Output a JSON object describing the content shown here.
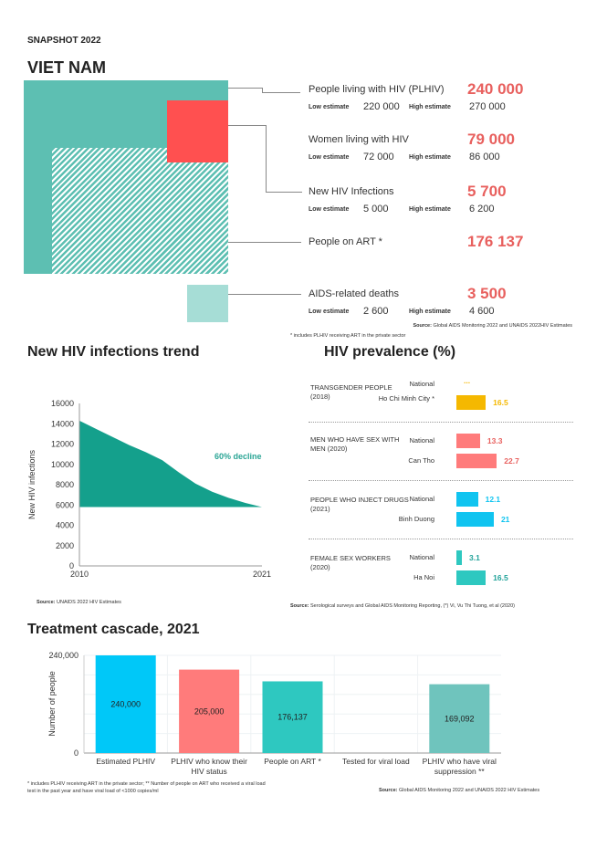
{
  "header": {
    "snapshot": "SNAPSHOT 2022",
    "country": "VIET NAM"
  },
  "colors": {
    "plhiv": "#5dbfb2",
    "women": "#ff5050",
    "art_hatch": "#5dbfb2",
    "deaths": "#a6ddd6",
    "number": "#e8605e"
  },
  "estimate_labels": {
    "low": "Low estimate",
    "high": "High estimate"
  },
  "stats": [
    {
      "label": "People living with HIV (PLHIV)",
      "value": "240 000",
      "low": "220 000",
      "high": "270 000"
    },
    {
      "label": "Women living with HIV",
      "value": "79 000",
      "low": "72 000",
      "high": "86 000"
    },
    {
      "label": "New HIV Infections",
      "value": "5 700",
      "low": "5 000",
      "high": "6 200"
    },
    {
      "label": "People on ART *",
      "value": "176 137"
    },
    {
      "label": "AIDS-related deaths",
      "value": "3 500",
      "low": "2 600",
      "high": "4 600"
    }
  ],
  "stats_source": {
    "prefix": "Source:",
    "text": " Global AIDS Monitoring 2022 and UNAIDS 2022HIV Estimates"
  },
  "stats_footnote": "* includes PLHIV receiving ART in the private sector",
  "trend": {
    "title": "New HIV infections trend",
    "source_prefix": "Source:",
    "source": " UNAIDS 2022 HIV Estimates"
  },
  "prevalence": {
    "title": "HIV prevalence (%)",
    "source_prefix": "Source:",
    "source": " Serological surveys and Global AIDS Monitoring Reporting,   (*) Vi, Vu Thi Tuong,  et al (2020)"
  },
  "cascade": {
    "title": "Treatment cascade, 2021",
    "footnote1": "* includes PLHIV receiving ART in the private sector; ** Number of people on ART who received a viral load",
    "footnote2": "test in the past year and have viral load of <1000 copies/ml",
    "source_prefix": "Source:",
    "source": " Global AIDS Monitoring 2022 and UNAIDS 2022 HIV Estimates"
  },
  "chart_data": [
    {
      "type": "area",
      "title": "New HIV infections trend",
      "xlabel": "",
      "ylabel": "New HIV infections",
      "x": [
        2010,
        2011,
        2012,
        2013,
        2014,
        2015,
        2016,
        2017,
        2018,
        2019,
        2020,
        2021
      ],
      "values": [
        14300,
        13500,
        12700,
        11900,
        11200,
        10400,
        9200,
        8100,
        7300,
        6700,
        6200,
        5800
      ],
      "baseline": 5800,
      "ylim": [
        0,
        16000
      ],
      "yticks": [
        "0",
        "2000",
        "4000",
        "6000",
        "8000",
        "10000",
        "12000",
        "14000",
        "16000"
      ],
      "xticks": [
        "2010",
        "2021"
      ],
      "annotation": "60% decline",
      "color": "#14a08c",
      "grid": false
    },
    {
      "type": "bar",
      "orientation": "horizontal",
      "title": "HIV prevalence (%)",
      "groups": [
        {
          "name": "TRANSGENDER PEOPLE (2018)",
          "color": "#f5b800",
          "items": [
            {
              "label": "National",
              "value": null,
              "text": "..."
            },
            {
              "label": "Ho Chi Minh City *",
              "value": 16.5,
              "text": "16.5"
            }
          ]
        },
        {
          "name": "MEN WHO HAVE SEX WITH  MEN (2020)",
          "color": "#ff7b7b",
          "items": [
            {
              "label": "National",
              "value": 13.3,
              "text": "13.3"
            },
            {
              "label": "Can Tho",
              "value": 22.7,
              "text": "22.7"
            }
          ]
        },
        {
          "name": "PEOPLE WHO INJECT DRUGS (2021)",
          "color": "#10c4f0",
          "items": [
            {
              "label": "National",
              "value": 12.1,
              "text": "12.1"
            },
            {
              "label": "Binh Duong",
              "value": 21,
              "text": "21"
            }
          ]
        },
        {
          "name": "FEMALE SEX WORKERS (2020)",
          "color": "#2ec8c0",
          "items": [
            {
              "label": "National",
              "value": 3.1,
              "text": "3.1"
            },
            {
              "label": "Ha Noi",
              "value": 16.5,
              "text": "16.5"
            }
          ]
        }
      ]
    },
    {
      "type": "bar",
      "title": "Treatment cascade, 2021",
      "ylabel": "Number of people",
      "ylim": [
        0,
        240000
      ],
      "yticks": [
        "0",
        "240,000"
      ],
      "grid": true,
      "categories": [
        "Estimated PLHIV",
        "PLHIV who know their HIV status",
        "People on ART *",
        "Tested for viral load",
        "PLHIV who have viral suppression **"
      ],
      "values": [
        240000,
        205000,
        176137,
        null,
        169092
      ],
      "labels": [
        "240,000",
        "205,000",
        "176,137",
        "",
        "169,092"
      ],
      "colors": [
        "#00c8f8",
        "#ff7b7b",
        "#2ec8c0",
        "#cccccc",
        "#6fc4bd"
      ]
    }
  ]
}
